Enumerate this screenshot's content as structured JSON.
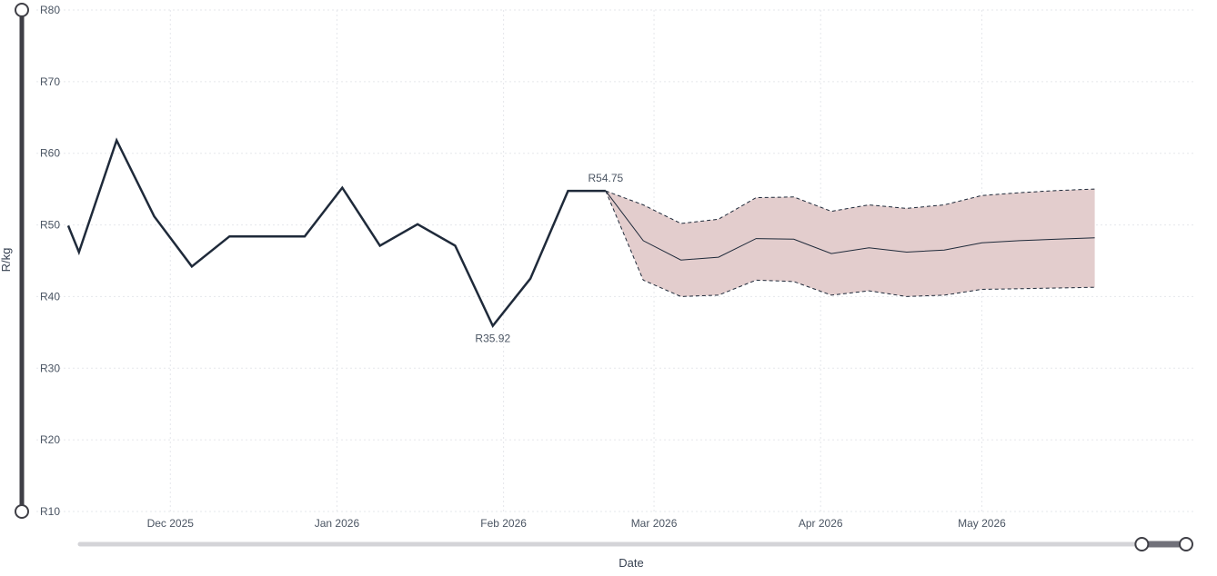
{
  "chart_data": {
    "type": "line",
    "xlabel": "Date",
    "ylabel": "R/kg",
    "y_ticks": [
      "R10",
      "R20",
      "R30",
      "R40",
      "R50",
      "R60",
      "R70",
      "R80"
    ],
    "y_tick_values": [
      10,
      20,
      30,
      40,
      50,
      60,
      70,
      80
    ],
    "ylim": [
      10,
      80
    ],
    "xlim": [
      "2025-11-12",
      "2026-06-08"
    ],
    "x_ticks": [
      {
        "label": "Dec 2025",
        "date": "2025-12-01"
      },
      {
        "label": "Jan 2026",
        "date": "2026-01-01"
      },
      {
        "label": "Feb 2026",
        "date": "2026-02-01"
      },
      {
        "label": "Mar 2026",
        "date": "2026-03-01"
      },
      {
        "label": "Apr 2026",
        "date": "2026-04-01"
      },
      {
        "label": "May 2026",
        "date": "2026-05-01"
      }
    ],
    "grid": true,
    "series": [
      {
        "role": "actual",
        "color": "#1f2a3a",
        "x": [
          "2025-11-12",
          "2025-11-14",
          "2025-11-21",
          "2025-11-28",
          "2025-12-05",
          "2025-12-12",
          "2025-12-19",
          "2025-12-26",
          "2026-01-02",
          "2026-01-09",
          "2026-01-16",
          "2026-01-23",
          "2026-01-30",
          "2026-02-06",
          "2026-02-13",
          "2026-02-20"
        ],
        "y": [
          49.9,
          46.2,
          61.8,
          51.2,
          44.2,
          48.4,
          48.4,
          48.4,
          55.2,
          47.1,
          50.1,
          47.1,
          35.92,
          42.5,
          54.75,
          54.75
        ]
      },
      {
        "role": "forecast",
        "color": "#1f2a3a",
        "x": [
          "2026-02-20",
          "2026-02-27",
          "2026-03-06",
          "2026-03-13",
          "2026-03-20",
          "2026-03-27",
          "2026-04-03",
          "2026-04-10",
          "2026-04-17",
          "2026-04-24",
          "2026-05-01",
          "2026-05-08",
          "2026-05-15",
          "2026-05-22"
        ],
        "y": [
          54.75,
          47.8,
          45.1,
          45.5,
          48.1,
          48.0,
          46.0,
          46.8,
          46.2,
          46.5,
          47.5,
          47.8,
          48.0,
          48.2
        ]
      }
    ],
    "forecast_band": {
      "fill": "#e3cdcd",
      "x": [
        "2026-02-20",
        "2026-02-27",
        "2026-03-06",
        "2026-03-13",
        "2026-03-20",
        "2026-03-27",
        "2026-04-03",
        "2026-04-10",
        "2026-04-17",
        "2026-04-24",
        "2026-05-01",
        "2026-05-08",
        "2026-05-15",
        "2026-05-22"
      ],
      "upper": [
        54.75,
        52.8,
        50.2,
        50.8,
        53.8,
        53.9,
        51.9,
        52.8,
        52.3,
        52.8,
        54.1,
        54.5,
        54.8,
        55.0
      ],
      "lower": [
        54.75,
        42.3,
        40.0,
        40.2,
        42.3,
        42.1,
        40.2,
        40.8,
        40.0,
        40.2,
        41.0,
        41.1,
        41.2,
        41.3
      ]
    },
    "annotations": [
      {
        "text": "R54.75",
        "x": "2026-02-20",
        "y": 54.75,
        "position": "above"
      },
      {
        "text": "R35.92",
        "x": "2026-01-30",
        "y": 35.92,
        "position": "below"
      }
    ],
    "y_range_slider": {
      "low": 10,
      "high": 80
    },
    "x_range_slider": {
      "start": 0.0,
      "end": 1.0,
      "handle_low": 0.96,
      "handle_high": 1.0
    }
  }
}
